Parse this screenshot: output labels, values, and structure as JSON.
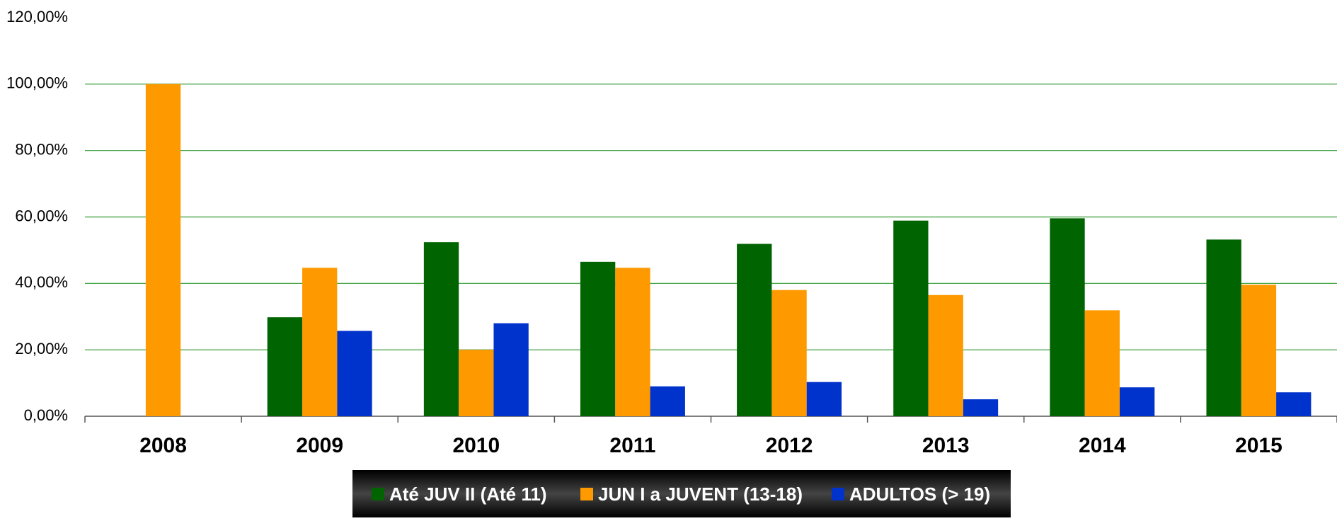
{
  "chart_data": {
    "type": "bar",
    "categories": [
      "2008",
      "2009",
      "2010",
      "2011",
      "2012",
      "2013",
      "2014",
      "2015"
    ],
    "series": [
      {
        "name": "Até JUV II (Até 11)",
        "color": "#006400",
        "values": [
          0,
          29.8,
          52.4,
          46.5,
          51.9,
          58.9,
          59.6,
          53.2
        ]
      },
      {
        "name": "JUN I a JUVENT (13-18)",
        "color": "#ff9900",
        "values": [
          100,
          44.7,
          20.0,
          44.7,
          38.0,
          36.5,
          31.9,
          39.6
        ]
      },
      {
        "name": "ADULTOS (> 19)",
        "color": "#0033cc",
        "values": [
          0,
          25.7,
          28.0,
          9.0,
          10.3,
          5.1,
          8.7,
          7.2
        ]
      }
    ],
    "ylim": [
      0,
      120
    ],
    "yticks": [
      {
        "value": 0,
        "label": "0,00%"
      },
      {
        "value": 20,
        "label": "20,00%"
      },
      {
        "value": 40,
        "label": "40,00%"
      },
      {
        "value": 60,
        "label": "60,00%"
      },
      {
        "value": 80,
        "label": "80,00%"
      },
      {
        "value": 100,
        "label": "100,00%"
      },
      {
        "value": 120,
        "label": "120,00%"
      }
    ],
    "grid": true,
    "legend": "bottom"
  }
}
